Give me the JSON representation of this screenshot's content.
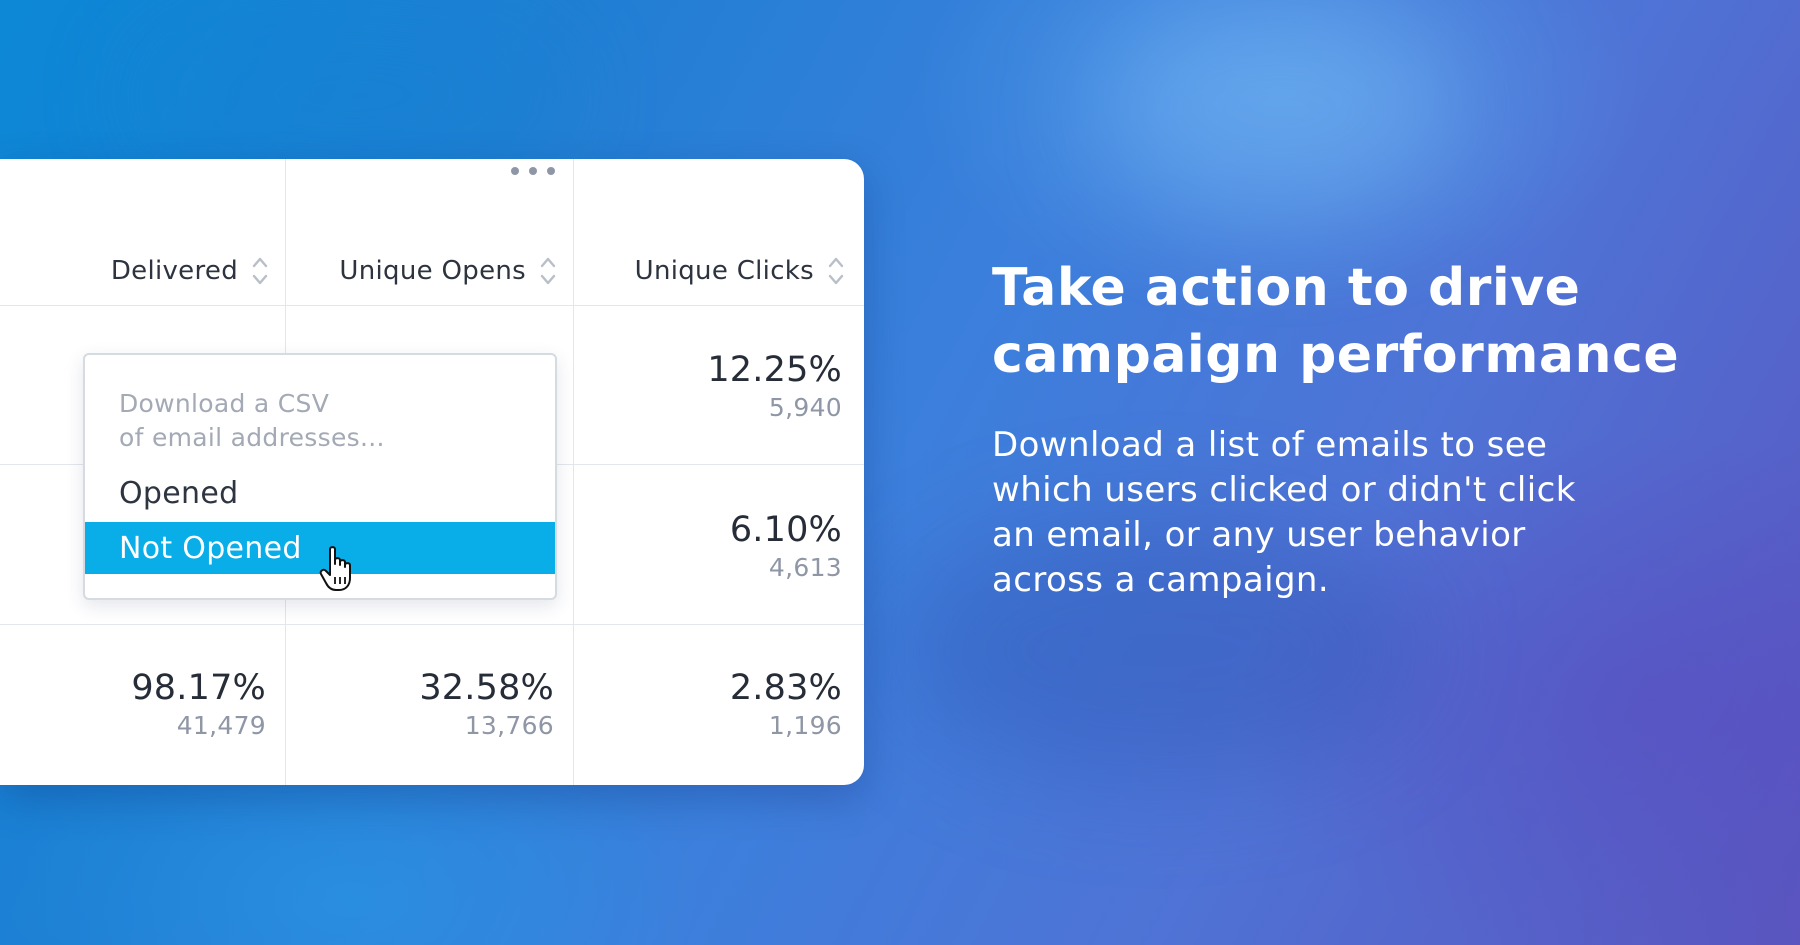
{
  "table": {
    "columns": [
      {
        "label": "Delivered"
      },
      {
        "label": "Unique Opens"
      },
      {
        "label": "Unique Clicks"
      }
    ],
    "rows": [
      {
        "delivered": {
          "pct": "",
          "count": ""
        },
        "opens": {
          "pct": "",
          "count": ""
        },
        "clicks": {
          "pct": "12.25%",
          "count": "5,940"
        }
      },
      {
        "delivered": {
          "pct": "",
          "count": ""
        },
        "opens": {
          "pct": "",
          "count": ""
        },
        "clicks": {
          "pct": "6.10%",
          "count": "4,613"
        }
      },
      {
        "delivered": {
          "pct": "98.17%",
          "count": "41,479"
        },
        "opens": {
          "pct": "32.58%",
          "count": "13,766"
        },
        "clicks": {
          "pct": "2.83%",
          "count": "1,196"
        }
      }
    ]
  },
  "dropdown": {
    "hint_line1": "Download a CSV",
    "hint_line2": "of email addresses...",
    "options": [
      {
        "label": "Opened"
      },
      {
        "label": "Not Opened",
        "highlighted": true
      }
    ]
  },
  "promo": {
    "headline_line1": "Take action to drive",
    "headline_line2": "campaign performance",
    "body_line1": "Download a list of emails to see",
    "body_line2": "which users clicked or didn't click",
    "body_line3": "an email, or any user behavior",
    "body_line4": "across a campaign."
  },
  "colors": {
    "accent": "#09aee9",
    "text_dark": "#262d38",
    "text_muted": "#8f97a6"
  },
  "icons": {
    "sort": "sort-icon",
    "more": "more-horizontal-icon",
    "cursor": "hand-pointer-icon"
  }
}
